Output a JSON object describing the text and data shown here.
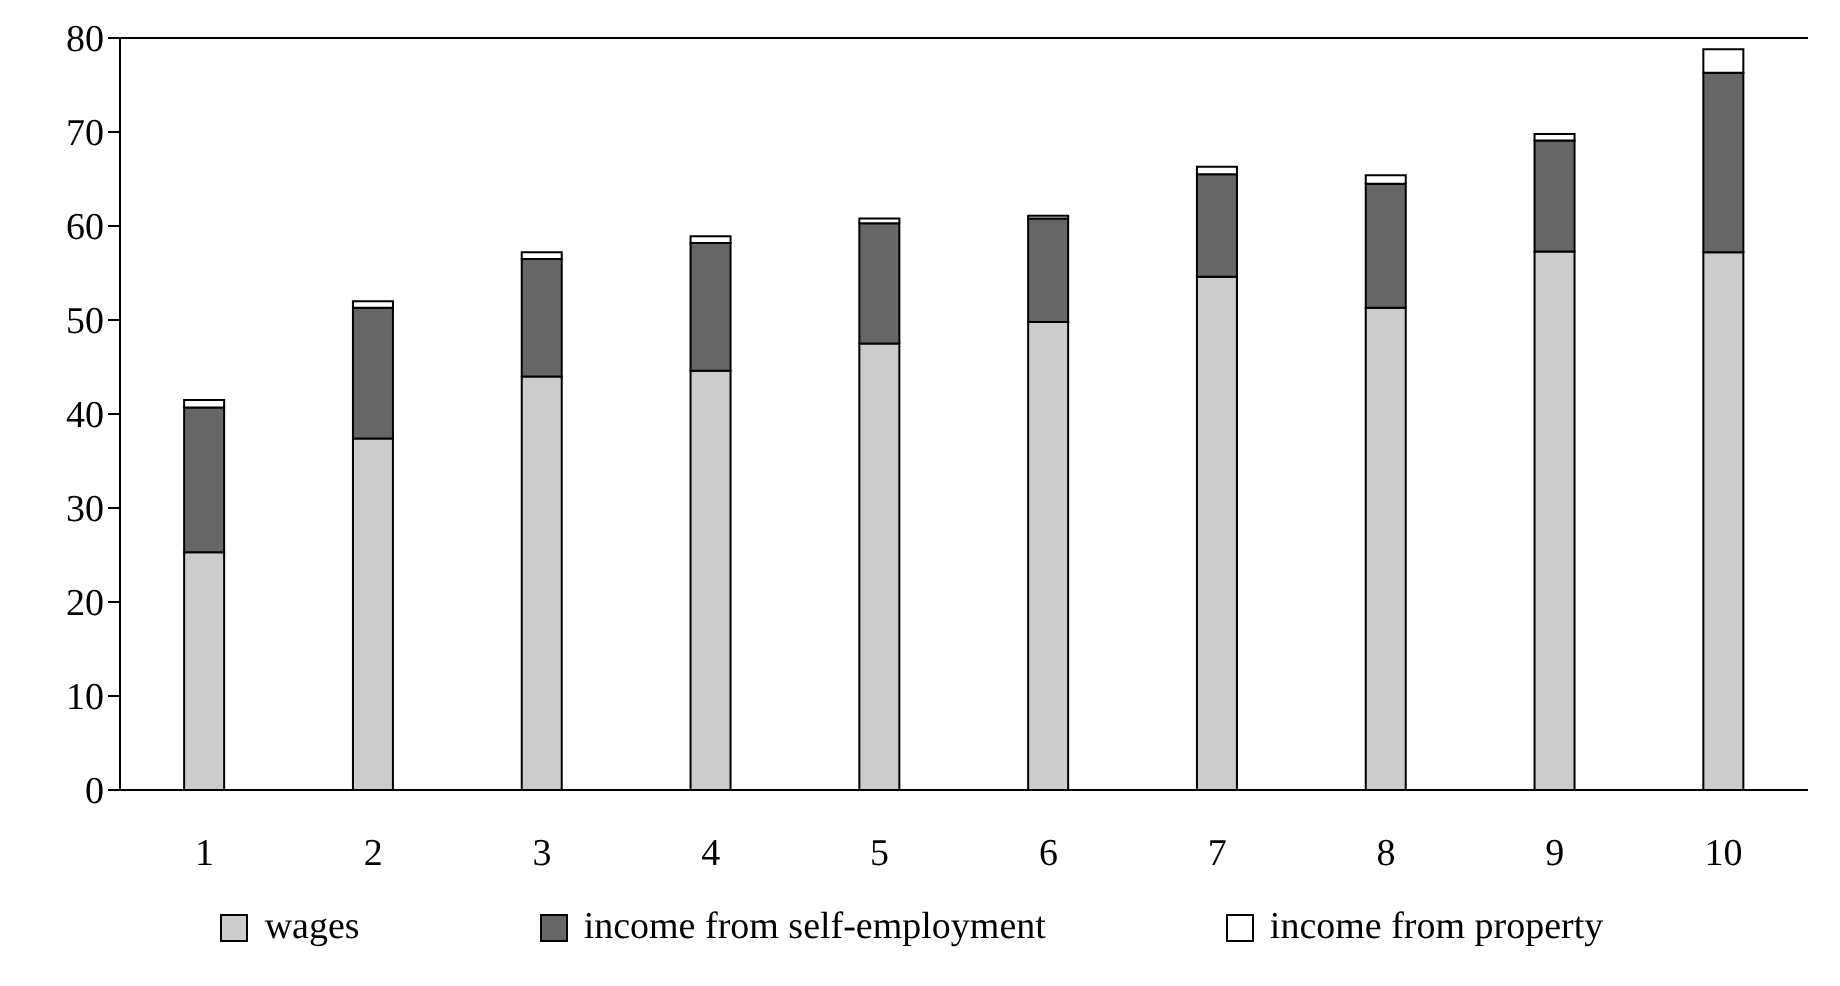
{
  "chart_data": {
    "type": "bar",
    "stacked": true,
    "categories": [
      "1",
      "2",
      "3",
      "4",
      "5",
      "6",
      "7",
      "8",
      "9",
      "10"
    ],
    "series": [
      {
        "name": "wages",
        "color": "#cccccc",
        "values": [
          25.3,
          37.4,
          44.0,
          44.6,
          47.5,
          49.8,
          54.6,
          51.3,
          57.3,
          57.2
        ]
      },
      {
        "name": "income from self-employment",
        "color": "#666666",
        "values": [
          15.4,
          13.9,
          12.5,
          13.6,
          12.8,
          11.0,
          10.9,
          13.2,
          11.8,
          19.1
        ]
      },
      {
        "name": "income from property",
        "color": "#ffffff",
        "values": [
          0.8,
          0.7,
          0.7,
          0.7,
          0.5,
          0.3,
          0.8,
          0.9,
          0.7,
          2.5
        ]
      }
    ],
    "ylim": [
      0,
      80
    ],
    "yticks": [
      0,
      10,
      20,
      30,
      40,
      50,
      60,
      70,
      80
    ],
    "grid": false,
    "legend": "bottom"
  }
}
